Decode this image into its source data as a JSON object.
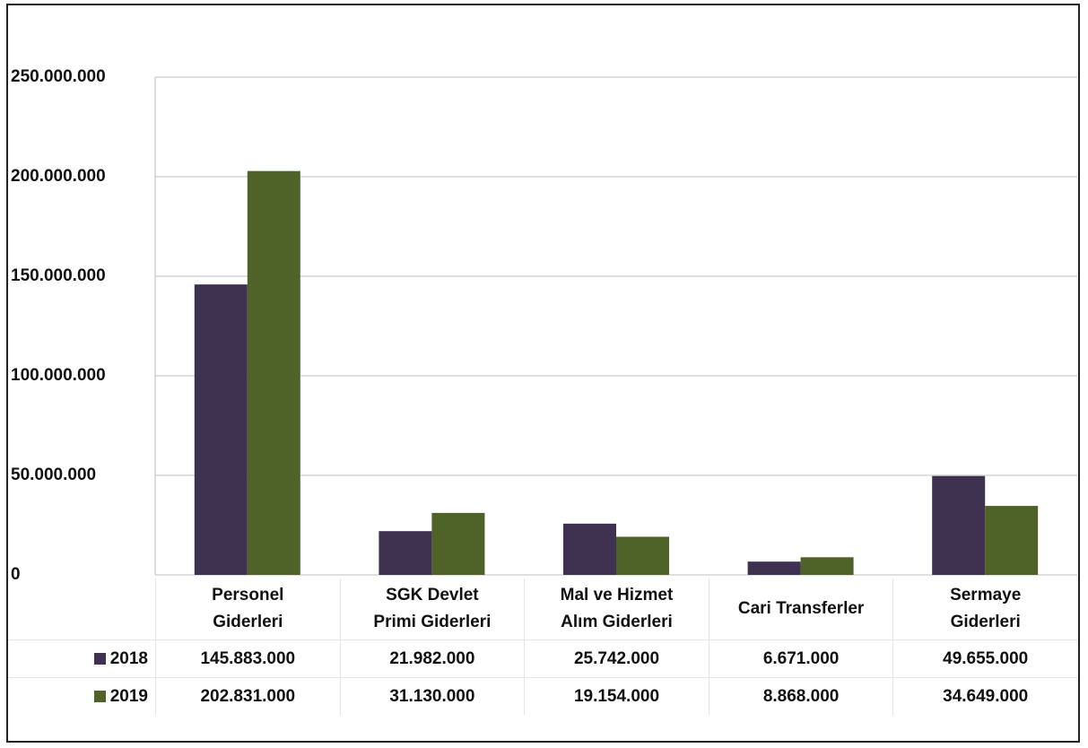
{
  "chart_data": {
    "type": "bar",
    "categories": [
      "Personel\nGiderleri",
      "SGK Devlet\nPrimi Giderleri",
      "Mal ve Hizmet\nAlım Giderleri",
      "Cari Transferler",
      "Sermaye\nGiderleri"
    ],
    "series": [
      {
        "name": "2018",
        "color": "#3f3150",
        "values": [
          145883000,
          21982000,
          25742000,
          6671000,
          49655000
        ],
        "value_labels": [
          "145.883.000",
          "21.982.000",
          "25.742.000",
          "6.671.000",
          "49.655.000"
        ]
      },
      {
        "name": "2019",
        "color": "#4f6228",
        "values": [
          202831000,
          31130000,
          19154000,
          8868000,
          34649000
        ],
        "value_labels": [
          "202.831.000",
          "31.130.000",
          "19.154.000",
          "8.868.000",
          "34.649.000"
        ]
      }
    ],
    "ylim": [
      0,
      250000000
    ],
    "yticks": [
      0,
      {
        "value": 50000000,
        "label": "50.000.000"
      },
      {
        "value": 100000000,
        "label": "100.000.000"
      },
      {
        "value": 150000000,
        "label": "150.000.000"
      },
      {
        "value": 200000000,
        "label": "200.000.000"
      },
      {
        "value": 250000000,
        "label": "250.000.000"
      }
    ],
    "grid": true
  }
}
